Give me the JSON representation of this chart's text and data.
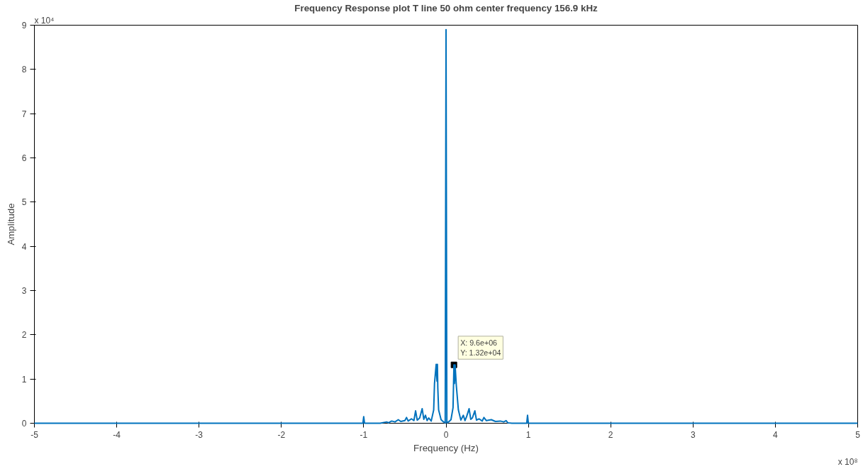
{
  "chart_data": {
    "type": "line",
    "title": "Frequency Response plot T line 50 ohm center frequency 156.9 kHz",
    "xlabel": "Frequency (Hz)",
    "ylabel": "Amplitude",
    "series": [
      {
        "color": "#0072bd",
        "x": [
          -5,
          -1.01,
          -1,
          -0.99,
          -0.8,
          -0.72,
          -0.7,
          -0.66,
          -0.62,
          -0.58,
          -0.55,
          -0.5,
          -0.48,
          -0.46,
          -0.42,
          -0.39,
          -0.37,
          -0.35,
          -0.32,
          -0.29,
          -0.27,
          -0.25,
          -0.23,
          -0.21,
          -0.18,
          -0.15,
          -0.14,
          -0.12,
          -0.11,
          -0.105,
          -0.1,
          -0.09,
          -0.06,
          -0.03,
          -0.01,
          0,
          0.01,
          0.03,
          0.06,
          0.085,
          0.096,
          0.102,
          0.11,
          0.125,
          0.15,
          0.18,
          0.21,
          0.23,
          0.25,
          0.28,
          0.3,
          0.32,
          0.35,
          0.37,
          0.4,
          0.44,
          0.46,
          0.49,
          0.55,
          0.6,
          0.66,
          0.7,
          0.73,
          0.75,
          0.8,
          0.98,
          0.99,
          1,
          5
        ],
        "values": [
          0,
          0,
          0.15,
          0,
          0,
          0.03,
          0.01,
          0.05,
          0.03,
          0.08,
          0.04,
          0.06,
          0.13,
          0.05,
          0.1,
          0.06,
          0.28,
          0.07,
          0.12,
          0.33,
          0.09,
          0.18,
          0.06,
          0.12,
          0.05,
          0.3,
          0.9,
          1.33,
          0.95,
          1.33,
          0.8,
          0.3,
          0.08,
          0.03,
          0.01,
          8.9,
          0.01,
          0.03,
          0.08,
          0.35,
          1.32,
          0.9,
          1.32,
          0.85,
          0.3,
          0.07,
          0.18,
          0.06,
          0.15,
          0.33,
          0.09,
          0.12,
          0.28,
          0.07,
          0.1,
          0.05,
          0.13,
          0.06,
          0.08,
          0.04,
          0.05,
          0.03,
          0.06,
          0.01,
          0,
          0,
          0.18,
          0,
          0
        ]
      }
    ],
    "xlim": [
      -5,
      5
    ],
    "ylim": [
      0,
      9
    ],
    "xticks": [
      -5,
      -4,
      -3,
      -2,
      -1,
      0,
      1,
      2,
      3,
      4,
      5
    ],
    "yticks": [
      0,
      1,
      2,
      3,
      4,
      5,
      6,
      7,
      8,
      9
    ],
    "annotations": [
      "x 10⁴",
      "x 10⁸",
      {
        "text": "X: 9.6e+06\nY: 1.32e+04",
        "x": 0.096,
        "y": 1.32
      }
    ],
    "grid": false,
    "marker": "none",
    "line_style": "solid"
  }
}
